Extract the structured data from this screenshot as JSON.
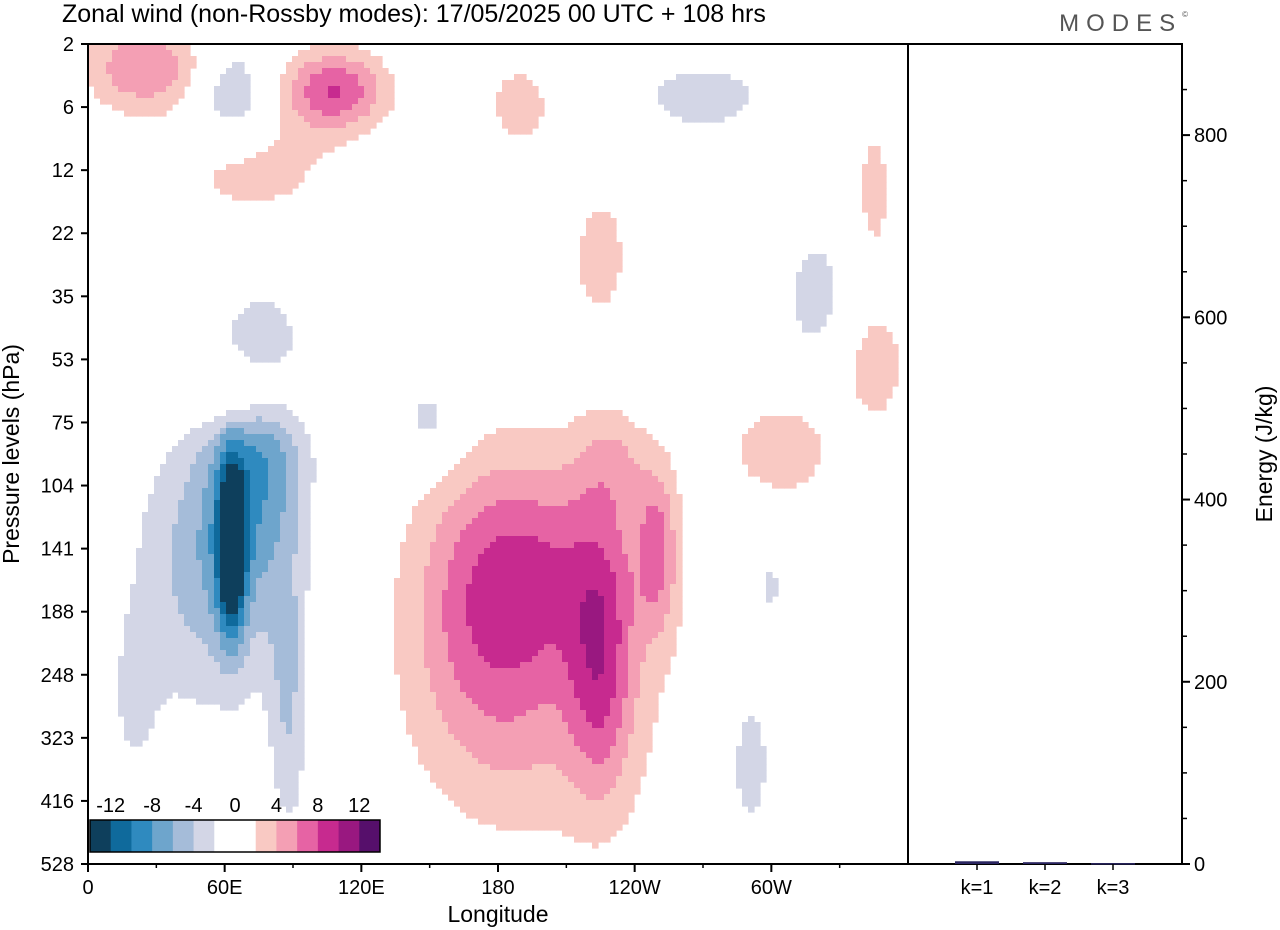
{
  "header": {
    "title": "Zonal wind (non-Rossby modes):  17/05/2025  00 UTC  + 108 hrs",
    "brand": "MODES"
  },
  "colors": {
    "negative": [
      "#0e3f5c",
      "#0f6a9c",
      "#2f8abf",
      "#6ea5cc",
      "#a5bcd9",
      "#d3d6e6"
    ],
    "positive": [
      "#f9c9c3",
      "#f49fb4",
      "#e663a4",
      "#c72a8f",
      "#991880",
      "#560f6b"
    ],
    "axis": "#000000",
    "bar": "#2a2560"
  },
  "chart_data": [
    {
      "type": "heatmap",
      "title": "Zonal wind (non-Rossby modes):  17/05/2025  00 UTC  + 108 hrs",
      "xlabel": "Longitude",
      "ylabel": "Pressure levels (hPa)",
      "x_ticks": [
        "0",
        "60E",
        "120E",
        "180",
        "120W",
        "60W"
      ],
      "y_ticks": [
        "2",
        "6",
        "12",
        "22",
        "35",
        "53",
        "75",
        "104",
        "141",
        "188",
        "248",
        "323",
        "416",
        "528"
      ],
      "colorbar": {
        "labels": [
          "-12",
          "-8",
          "-4",
          "0",
          "4",
          "8",
          "12"
        ],
        "levels": [
          -12,
          -10,
          -8,
          -6,
          -4,
          -2,
          0,
          2,
          4,
          6,
          8,
          10,
          12
        ]
      },
      "features": [
        {
          "lon": 63,
          "lev": 141,
          "value": -14,
          "sx": 4,
          "sy": 0.9
        },
        {
          "lon": 66,
          "lev": 128,
          "value": -6,
          "sx": 16,
          "sy": 1.6
        },
        {
          "lon": 78,
          "lev": 75,
          "value": -5,
          "sx": 14,
          "sy": 1.3
        },
        {
          "lon": 88,
          "lev": 270,
          "value": -4,
          "sx": 6,
          "sy": 1.6
        },
        {
          "lon": 40,
          "lev": 160,
          "value": -3,
          "sx": 18,
          "sy": 1.6
        },
        {
          "lon": 150,
          "lev": 75,
          "value": -3,
          "sx": 10,
          "sy": 0.5
        },
        {
          "lon": 165,
          "lev": 18,
          "value": -2,
          "sx": 12,
          "sy": 1.5
        },
        {
          "lon": 63,
          "lev": 5,
          "value": -4,
          "sx": 12,
          "sy": 0.6
        },
        {
          "lon": 270,
          "lev": 5,
          "value": -2.5,
          "sx": 30,
          "sy": 0.6
        },
        {
          "lon": 290,
          "lev": 360,
          "value": -2.5,
          "sx": 12,
          "sy": 1.3
        },
        {
          "lon": 300,
          "lev": 160,
          "value": -2,
          "sx": 14,
          "sy": 1.0
        },
        {
          "lon": 340,
          "lev": 120,
          "value": -2,
          "sx": 12,
          "sy": 0.7
        },
        {
          "lon": 320,
          "lev": 35,
          "value": -2.5,
          "sx": 14,
          "sy": 1.0
        },
        {
          "lon": 250,
          "lev": 53,
          "value": -1.8,
          "sx": 20,
          "sy": 0.6
        },
        {
          "lon": 20,
          "lev": 280,
          "value": -2,
          "sx": 8,
          "sy": 1.0
        },
        {
          "lon": 25,
          "lev": 3,
          "value": 6,
          "sx": 18,
          "sy": 0.5
        },
        {
          "lon": 108,
          "lev": 4.5,
          "value": 8,
          "sx": 16,
          "sy": 0.45
        },
        {
          "lon": 72,
          "lev": 12,
          "value": 3,
          "sx": 26,
          "sy": 0.6
        },
        {
          "lon": 70,
          "lev": 64,
          "value": 6,
          "sx": 18,
          "sy": 0.45
        },
        {
          "lon": 175,
          "lev": 180,
          "value": 6,
          "sx": 24,
          "sy": 1.6
        },
        {
          "lon": 210,
          "lev": 150,
          "value": 5,
          "sx": 30,
          "sy": 1.2
        },
        {
          "lon": 225,
          "lev": 240,
          "value": 6,
          "sx": 10,
          "sy": 1.4
        },
        {
          "lon": 250,
          "lev": 141,
          "value": 5,
          "sx": 6,
          "sy": 0.9
        },
        {
          "lon": 200,
          "lev": 310,
          "value": 3,
          "sx": 40,
          "sy": 1.5
        },
        {
          "lon": 305,
          "lev": 88,
          "value": 4,
          "sx": 16,
          "sy": 0.6
        },
        {
          "lon": 345,
          "lev": 55,
          "value": 3.5,
          "sx": 10,
          "sy": 0.7
        },
        {
          "lon": 188,
          "lev": 6,
          "value": 3,
          "sx": 14,
          "sy": 0.6
        },
        {
          "lon": 225,
          "lev": 27,
          "value": 3,
          "sx": 10,
          "sy": 0.9
        },
        {
          "lon": 230,
          "lev": 90,
          "value": 3,
          "sx": 12,
          "sy": 0.7
        },
        {
          "lon": 345,
          "lev": 15,
          "value": 3,
          "sx": 6,
          "sy": 0.9
        }
      ]
    },
    {
      "type": "bar",
      "categories": [
        "k=1",
        "k=2",
        "k=3"
      ],
      "values": [
        3,
        2,
        1
      ],
      "ylabel": "Energy (J/kg)",
      "ylim": [
        0,
        900
      ],
      "y_ticks": [
        0,
        200,
        400,
        600,
        800
      ]
    }
  ]
}
